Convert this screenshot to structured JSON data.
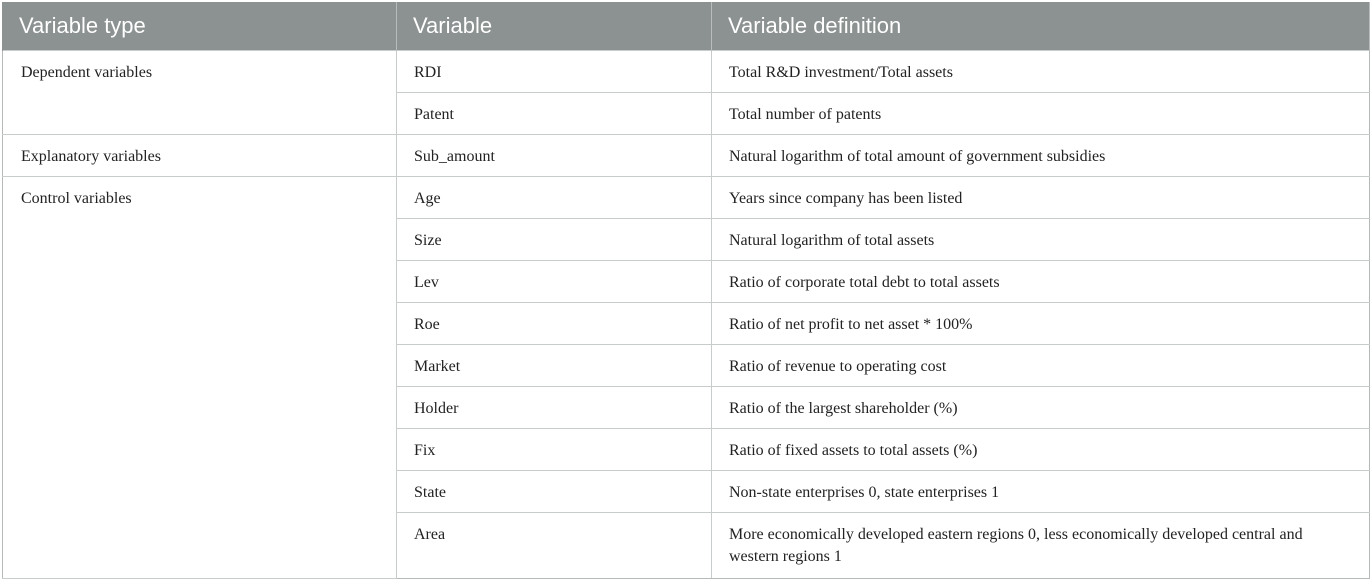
{
  "table": {
    "headers": [
      "Variable type",
      "Variable",
      "Variable definition"
    ],
    "groups": [
      {
        "type": "Dependent variables",
        "rows": [
          {
            "variable": "RDI",
            "definition": "Total R&D investment/Total assets"
          },
          {
            "variable": "Patent",
            "definition": "Total number of patents"
          }
        ]
      },
      {
        "type": "Explanatory variables",
        "rows": [
          {
            "variable": "Sub_amount",
            "definition": "Natural logarithm of total amount of government subsidies"
          }
        ]
      },
      {
        "type": "Control variables",
        "rows": [
          {
            "variable": "Age",
            "definition": "Years since company has been listed"
          },
          {
            "variable": "Size",
            "definition": "Natural logarithm of total assets"
          },
          {
            "variable": "Lev",
            "definition": "Ratio of corporate total debt to total assets"
          },
          {
            "variable": "Roe",
            "definition": "Ratio of net profit to net asset * 100%"
          },
          {
            "variable": "Market",
            "definition": "Ratio of revenue to operating cost"
          },
          {
            "variable": "Holder",
            "definition": "Ratio of the largest shareholder (%)"
          },
          {
            "variable": "Fix",
            "definition": "Ratio of fixed assets to total assets (%)"
          },
          {
            "variable": "State",
            "definition": "Non-state enterprises 0, state enterprises 1"
          },
          {
            "variable": "Area",
            "definition": "More economically developed eastern regions 0, less economically developed central and western regions 1"
          }
        ]
      }
    ]
  }
}
